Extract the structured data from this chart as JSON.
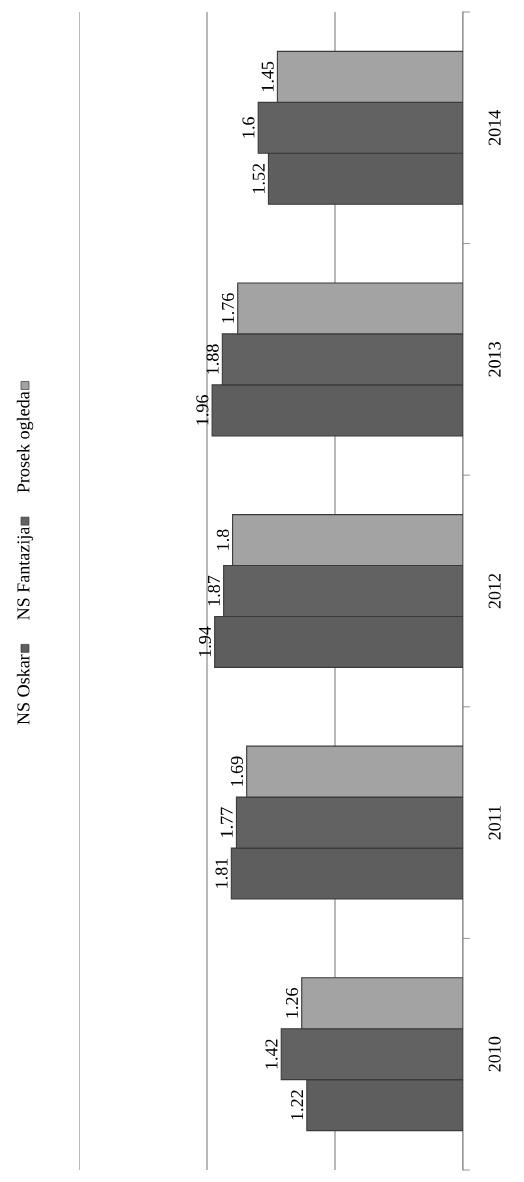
{
  "chart_data": {
    "type": "bar",
    "orientation": "horizontal",
    "categories": [
      "2014",
      "2013",
      "2012",
      "2011",
      "2010"
    ],
    "series": [
      {
        "name": "NS Oskar",
        "color": "#5e5e5e",
        "values": [
          1.52,
          1.96,
          1.94,
          1.81,
          1.22
        ]
      },
      {
        "name": "NS Fantazija",
        "color": "#626262",
        "values": [
          1.6,
          1.88,
          1.87,
          1.77,
          1.42
        ]
      },
      {
        "name": "Prosek ogleda",
        "color": "#a3a3a3",
        "values": [
          1.45,
          1.76,
          1.8,
          1.69,
          1.26
        ]
      }
    ],
    "xlim": [
      3,
      0
    ],
    "xticks": [
      {
        "value": 0,
        "label": null
      },
      {
        "value": 1,
        "label": null
      },
      {
        "value": 2,
        "label": null
      },
      {
        "value": 3,
        "label": null
      }
    ],
    "grid": "x",
    "legend": "left",
    "data_labels": true
  }
}
